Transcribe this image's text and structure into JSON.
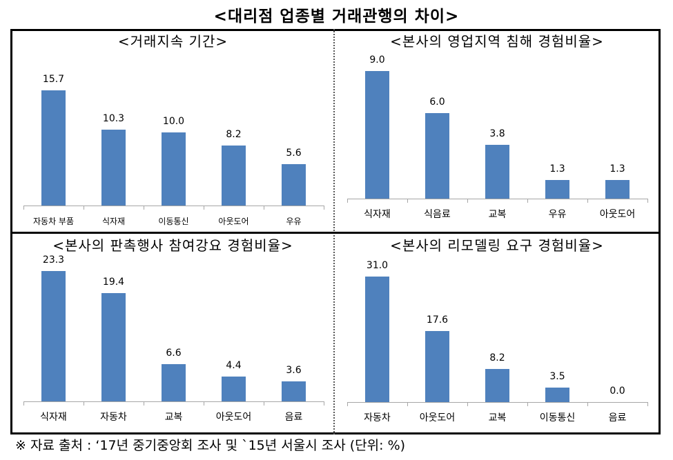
{
  "title": "<대리점 업종별 거래관행의 차이>",
  "footnote": "※ 자료 출처 : ‘17년 중기중앙회 조사 및 `15년 서울시 조사 (단위: %)",
  "colors": {
    "bar": "#4f81bd",
    "axis": "#a6a6a6",
    "frame": "#000000"
  },
  "chart_data": [
    {
      "type": "bar",
      "title": "<거래지속 기간>",
      "categories": [
        "자동차 부품",
        "식자재",
        "이동통신",
        "아웃도어",
        "우유"
      ],
      "values": [
        15.7,
        10.3,
        10.0,
        8.2,
        5.6
      ],
      "labels": [
        "15.7",
        "10.3",
        "10.0",
        "8.2",
        "5.6"
      ],
      "xlabel": "",
      "ylabel": "",
      "grid": false,
      "legend": "none"
    },
    {
      "type": "bar",
      "title": "<본사의 영업지역 침해 경험비율>",
      "categories": [
        "식자재",
        "식음료",
        "교복",
        "우유",
        "아웃도어"
      ],
      "values": [
        9.0,
        6.0,
        3.8,
        1.3,
        1.3
      ],
      "labels": [
        "9.0",
        "6.0",
        "3.8",
        "1.3",
        "1.3"
      ],
      "xlabel": "",
      "ylabel": "",
      "grid": false,
      "legend": "none"
    },
    {
      "type": "bar",
      "title": "<본사의 판촉행사 참여강요 경험비율>",
      "categories": [
        "식자재",
        "자동차",
        "교복",
        "아웃도어",
        "음료"
      ],
      "values": [
        23.3,
        19.4,
        6.6,
        4.4,
        3.6
      ],
      "labels": [
        "23.3",
        "19.4",
        "6.6",
        "4.4",
        "3.6"
      ],
      "xlabel": "",
      "ylabel": "",
      "grid": false,
      "legend": "none"
    },
    {
      "type": "bar",
      "title": "<본사의 리모델링 요구 경험비율>",
      "categories": [
        "자동차",
        "아웃도어",
        "교복",
        "이동통신",
        "음료"
      ],
      "values": [
        31.0,
        17.6,
        8.2,
        3.5,
        0.0
      ],
      "labels": [
        "31.0",
        "17.6",
        "8.2",
        "3.5",
        "0.0"
      ],
      "xlabel": "",
      "ylabel": "",
      "grid": false,
      "legend": "none"
    }
  ]
}
